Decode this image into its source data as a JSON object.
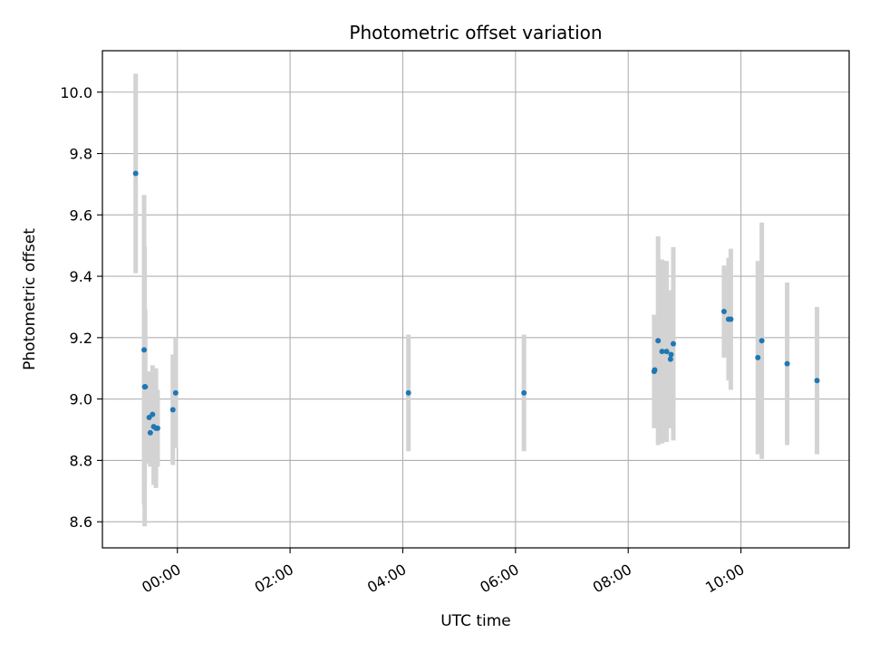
{
  "chart_data": {
    "type": "scatter",
    "title": "Photometric offset variation",
    "xlabel": "UTC time",
    "ylabel": "Photometric offset",
    "x_unit": "hours (UTC)",
    "xlim": [
      -1.33,
      11.92
    ],
    "ylim": [
      8.515,
      10.135
    ],
    "xticks": [
      {
        "value": 0,
        "label": "00:00"
      },
      {
        "value": 2,
        "label": "02:00"
      },
      {
        "value": 4,
        "label": "04:00"
      },
      {
        "value": 6,
        "label": "06:00"
      },
      {
        "value": 8,
        "label": "08:00"
      },
      {
        "value": 10,
        "label": "10:00"
      }
    ],
    "yticks": [
      {
        "value": 8.6,
        "label": "8.6"
      },
      {
        "value": 8.8,
        "label": "8.8"
      },
      {
        "value": 9.0,
        "label": "9.0"
      },
      {
        "value": 9.2,
        "label": "9.2"
      },
      {
        "value": 9.4,
        "label": "9.4"
      },
      {
        "value": 9.6,
        "label": "9.6"
      },
      {
        "value": 9.8,
        "label": "9.8"
      },
      {
        "value": 10.0,
        "label": "10.0"
      }
    ],
    "grid": true,
    "legend": "none",
    "marker_color": "#1f77b4",
    "errorbar_color": "#d3d3d3",
    "points": [
      {
        "x": -0.74,
        "y": 9.735,
        "yerr": 0.325
      },
      {
        "x": -0.59,
        "y": 9.16,
        "yerr": 0.505
      },
      {
        "x": -0.58,
        "y": 9.04,
        "yerr": 0.455
      },
      {
        "x": -0.57,
        "y": 9.04,
        "yerr": 0.25
      },
      {
        "x": -0.5,
        "y": 8.94,
        "yerr": 0.15
      },
      {
        "x": -0.48,
        "y": 8.89,
        "yerr": 0.11
      },
      {
        "x": -0.44,
        "y": 8.95,
        "yerr": 0.16
      },
      {
        "x": -0.42,
        "y": 8.91,
        "yerr": 0.19
      },
      {
        "x": -0.38,
        "y": 8.905,
        "yerr": 0.195
      },
      {
        "x": -0.35,
        "y": 8.905,
        "yerr": 0.125
      },
      {
        "x": -0.08,
        "y": 8.965,
        "yerr": 0.18
      },
      {
        "x": -0.03,
        "y": 9.02,
        "yerr": 0.18
      },
      {
        "x": 4.1,
        "y": 9.02,
        "yerr": 0.19
      },
      {
        "x": 6.15,
        "y": 9.02,
        "yerr": 0.19
      },
      {
        "x": 8.46,
        "y": 9.09,
        "yerr": 0.185
      },
      {
        "x": 8.47,
        "y": 9.095,
        "yerr": 0.18
      },
      {
        "x": 8.53,
        "y": 9.19,
        "yerr": 0.34
      },
      {
        "x": 8.6,
        "y": 9.155,
        "yerr": 0.3
      },
      {
        "x": 8.68,
        "y": 9.155,
        "yerr": 0.295
      },
      {
        "x": 8.75,
        "y": 9.13,
        "yerr": 0.225
      },
      {
        "x": 8.76,
        "y": 9.145,
        "yerr": 0.205
      },
      {
        "x": 8.8,
        "y": 9.18,
        "yerr": 0.315
      },
      {
        "x": 9.7,
        "y": 9.285,
        "yerr": 0.15
      },
      {
        "x": 9.78,
        "y": 9.26,
        "yerr": 0.2
      },
      {
        "x": 9.82,
        "y": 9.26,
        "yerr": 0.23
      },
      {
        "x": 10.3,
        "y": 9.135,
        "yerr": 0.315
      },
      {
        "x": 10.37,
        "y": 9.19,
        "yerr": 0.385
      },
      {
        "x": 10.82,
        "y": 9.115,
        "yerr": 0.265
      },
      {
        "x": 11.35,
        "y": 9.06,
        "yerr": 0.24
      }
    ]
  }
}
